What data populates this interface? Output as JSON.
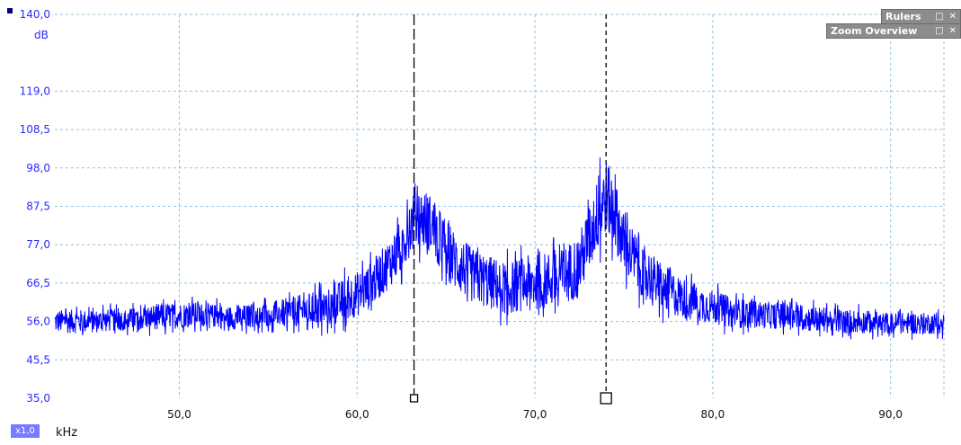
{
  "panels": {
    "rulers": {
      "title": "Rulers",
      "float_icon": "restore-icon",
      "close_icon": "close-icon"
    },
    "zoom_overview": {
      "title": "Zoom Overview",
      "float_icon": "restore-icon",
      "close_icon": "close-icon"
    }
  },
  "x_axis": {
    "unit": "kHz",
    "zoom_label": "x1,0"
  },
  "y_axis": {
    "unit": "dB"
  },
  "colors": {
    "trace": "#0000ff",
    "grid": "#8fc3e6",
    "ytick": "#2b2bff",
    "marker": "#000000"
  },
  "chart_data": {
    "type": "line",
    "x_range": [
      43.0,
      93.0
    ],
    "y_range": [
      35.0,
      140.0
    ],
    "yticks": [
      "35,0",
      "45,5",
      "56,0",
      "66,5",
      "77,0",
      "87,5",
      "98,0",
      "108,5",
      "119,0",
      "140,0"
    ],
    "ytick_values": [
      35.0,
      45.5,
      56.0,
      66.5,
      77.0,
      87.5,
      98.0,
      108.5,
      119.0,
      140.0
    ],
    "xticks": [
      "50,0",
      "60,0",
      "70,0",
      "80,0",
      "90,0"
    ],
    "xtick_values": [
      50,
      60,
      70,
      80,
      90
    ],
    "grid": true,
    "markers": [
      {
        "x": 63.2,
        "style": "long-dash",
        "handle": "small-square"
      },
      {
        "x": 74.0,
        "style": "short-dash",
        "handle": "large-square"
      }
    ],
    "series": [
      {
        "x": [
          43.0,
          45.0,
          47.0,
          49.0,
          51.0,
          53.0,
          55.0,
          57.0,
          58.5,
          59.5,
          60.5,
          61.5,
          62.5,
          63.0,
          63.5,
          64.0,
          64.5,
          65.5,
          66.5,
          67.5,
          68.5,
          69.5,
          70.5,
          71.5,
          72.5,
          73.0,
          73.5,
          74.0,
          74.5,
          75.0,
          76.0,
          77.0,
          78.0,
          79.0,
          80.0,
          81.0,
          82.0,
          84.0,
          86.0,
          88.0,
          90.0,
          92.0,
          93.0
        ],
        "upper": [
          61,
          61,
          61,
          63,
          63,
          62,
          63,
          66,
          68,
          72,
          74,
          80,
          88,
          95,
          97,
          96,
          92,
          85,
          80,
          78,
          76,
          78,
          79,
          80,
          85,
          92,
          100,
          106,
          100,
          90,
          82,
          76,
          72,
          69,
          67,
          65,
          64,
          63,
          62,
          61,
          60,
          60,
          60
        ],
        "lower": [
          51,
          51,
          52,
          52,
          53,
          52,
          53,
          52,
          52,
          53,
          55,
          60,
          65,
          70,
          72,
          71,
          68,
          60,
          57,
          55,
          54,
          55,
          55,
          56,
          58,
          64,
          70,
          75,
          71,
          64,
          59,
          56,
          54,
          53,
          53,
          52,
          52,
          52,
          51,
          51,
          51,
          51,
          51
        ]
      }
    ]
  }
}
